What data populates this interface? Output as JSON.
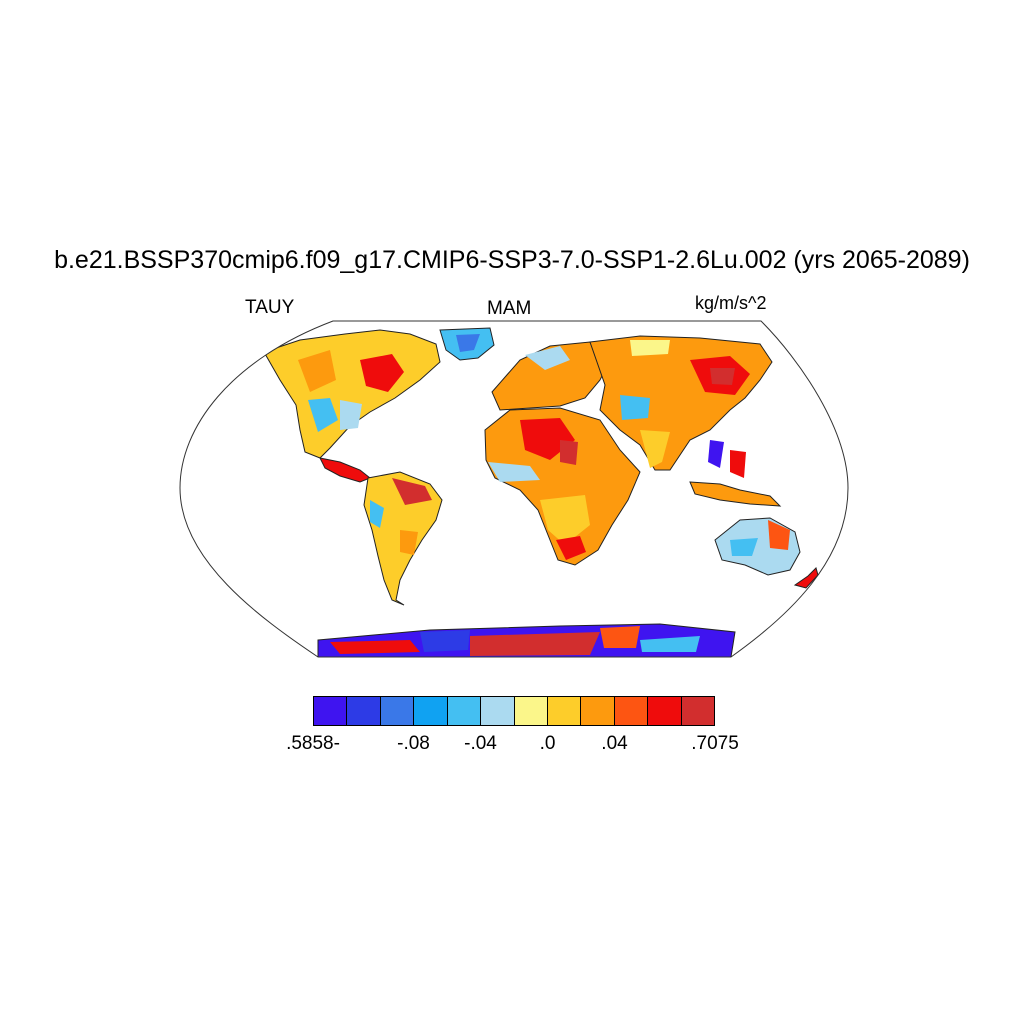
{
  "header": {
    "title": "b.e21.BSSP370cmip6.f09_g17.CMIP6-SSP3-7.0-SSP1-2.6Lu.002 (yrs 2065-2089)",
    "variable": "TAUY",
    "season": "MAM",
    "units": "kg/m/s^2"
  },
  "map": {
    "projection": "Robinson",
    "field": "TAUY",
    "ocean_masked": true,
    "coastlines": true
  },
  "colorbar": {
    "colors": [
      "#3f14f0",
      "#2d3be6",
      "#3a78e8",
      "#10a2f2",
      "#44bff2",
      "#abdaf0",
      "#fbf68a",
      "#fdcd2a",
      "#fd9a0e",
      "#fd5512",
      "#ef0c0c",
      "#d22e2e"
    ],
    "labels": [
      {
        "text": ".5858-",
        "slot": 0
      },
      {
        "text": "-.08",
        "slot": 3
      },
      {
        "text": "-.04",
        "slot": 5
      },
      {
        "text": ".0",
        "slot": 7
      },
      {
        "text": ".04",
        "slot": 9
      },
      {
        "text": ".7075",
        "slot": 12
      }
    ]
  }
}
